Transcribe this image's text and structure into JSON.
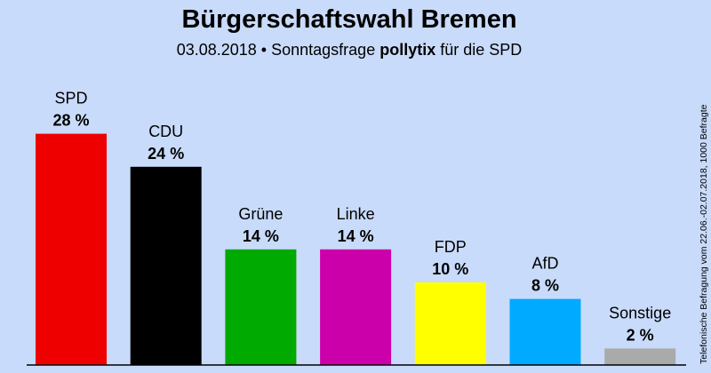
{
  "header": {
    "title": "Bürgerschaftswahl Bremen",
    "subtitle_prefix": "03.08.2018 • Sonntagsfrage ",
    "subtitle_bold": "pollytix",
    "subtitle_suffix": " für die SPD"
  },
  "side_note": "Telefonische Befragung vom 22.06.-02.07.2018, 1000 Befragte",
  "chart_data": {
    "type": "bar",
    "title": "Bürgerschaftswahl Bremen",
    "xlabel": "",
    "ylabel": "",
    "ylim": [
      0,
      30
    ],
    "grid": false,
    "unit": "%",
    "categories": [
      "SPD",
      "CDU",
      "Grüne",
      "Linke",
      "FDP",
      "AfD",
      "Sonstige"
    ],
    "values": [
      28,
      24,
      14,
      14,
      10,
      8,
      2
    ],
    "value_labels": [
      "28 %",
      "24 %",
      "14 %",
      "14 %",
      "10 %",
      "8 %",
      "2 %"
    ],
    "colors": [
      "#ee0000",
      "#000000",
      "#00aa00",
      "#cc00aa",
      "#ffff00",
      "#00aaff",
      "#aaaaaa"
    ]
  }
}
